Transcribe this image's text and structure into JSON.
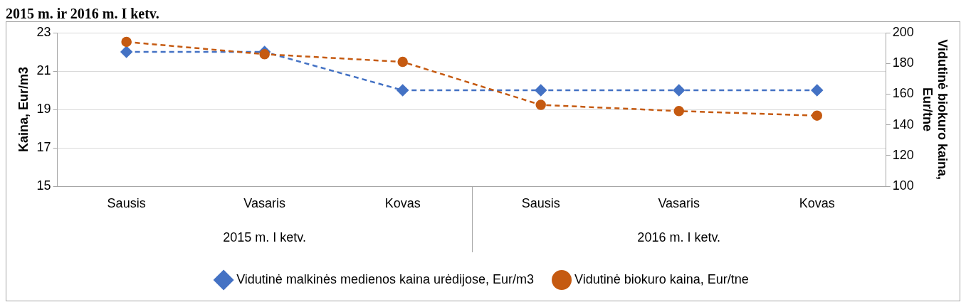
{
  "chart_data": {
    "type": "line",
    "title": "2015 m. ir 2016 m. I ketv.",
    "categories": [
      "Sausis",
      "Vasaris",
      "Kovas",
      "Sausis",
      "Vasaris",
      "Kovas"
    ],
    "annotations": [
      "2015 m. I ketv.",
      "2016 m. I ketv."
    ],
    "ylabel": "Kaina, Eur/m3",
    "y2label": "Vidutinė biokuro kaina, Eur/tne",
    "ylim": [
      15,
      23
    ],
    "yticks": [
      15,
      17,
      19,
      21,
      23
    ],
    "y2lim": [
      100,
      200
    ],
    "y2ticks": [
      100,
      120,
      140,
      160,
      180,
      200
    ],
    "grid": "y",
    "legend": "bottom",
    "line_style": "dashed",
    "series": [
      {
        "name": "Vidutinė malkinės medienos kaina urėdijose, Eur/m3",
        "color": "#4472c4",
        "marker": "diamond",
        "values": [
          22,
          22,
          20,
          20,
          20,
          20
        ]
      },
      {
        "name": "Vidutinė biokuro kaina, Eur/tne",
        "color": "#c55a11",
        "marker": "circle",
        "axis": "y2",
        "values": [
          194,
          186,
          181,
          153,
          149,
          146
        ]
      }
    ]
  }
}
